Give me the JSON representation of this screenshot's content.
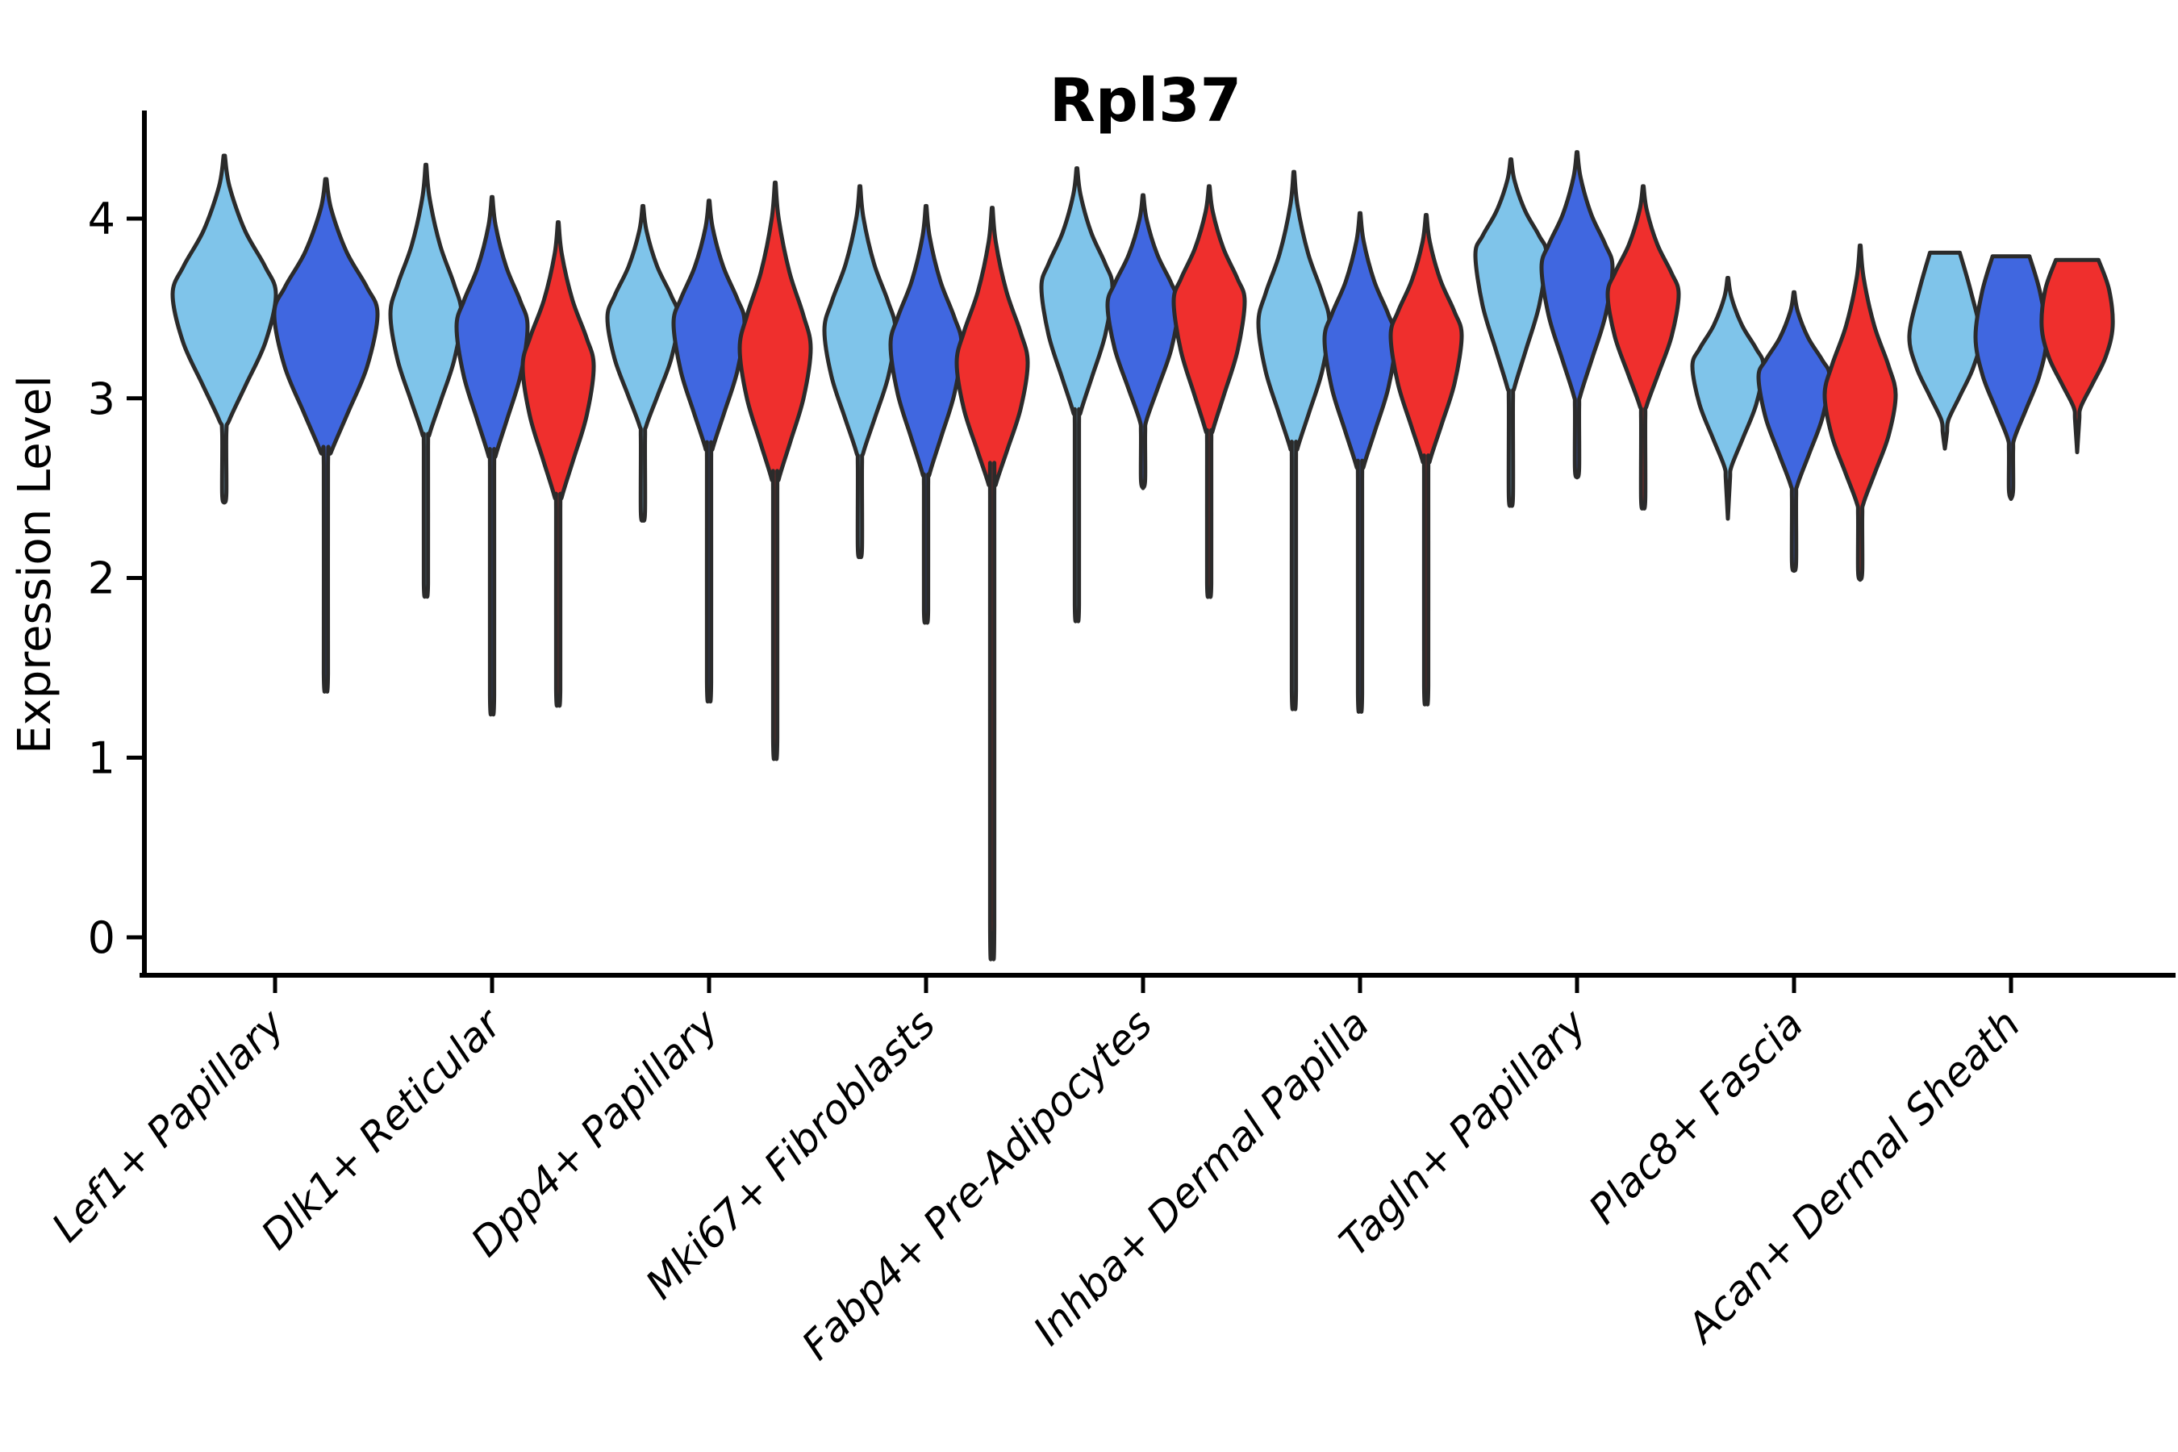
{
  "chart_data": {
    "type": "violin",
    "title": "Rpl37",
    "xlabel": "",
    "ylabel": "Expression Level",
    "yticks": [
      0,
      1,
      2,
      3,
      4
    ],
    "ylim": [
      -0.2,
      4.6
    ],
    "grid": false,
    "legend": "none",
    "series": [
      {
        "name": "series-skyblue",
        "color": "#7FC4EA"
      },
      {
        "name": "series-royalblue",
        "color": "#4067E0"
      },
      {
        "name": "series-red",
        "color": "#EF2F2D"
      }
    ],
    "outline_color": "#2B2B2B",
    "categories": [
      {
        "label": "Lef1+ Papillary",
        "violins": [
          {
            "series": 0,
            "top": 4.35,
            "mode": 3.58,
            "body_bottom": 2.88,
            "tail_end": 2.42
          },
          {
            "series": 1,
            "top": 4.22,
            "mode": 3.47,
            "body_bottom": 2.7,
            "tail_end": 1.42
          }
        ]
      },
      {
        "label": "Dlk1+ Reticular",
        "violins": [
          {
            "series": 0,
            "top": 4.3,
            "mode": 3.47,
            "body_bottom": 2.8,
            "tail_end": 1.92
          },
          {
            "series": 1,
            "top": 4.12,
            "mode": 3.4,
            "body_bottom": 2.68,
            "tail_end": 1.3
          },
          {
            "series": 2,
            "top": 3.98,
            "mode": 3.18,
            "body_bottom": 2.45,
            "tail_end": 1.33
          }
        ]
      },
      {
        "label": "Dpp4+ Papillary",
        "violins": [
          {
            "series": 0,
            "top": 4.07,
            "mode": 3.45,
            "body_bottom": 2.85,
            "tail_end": 2.32
          },
          {
            "series": 1,
            "top": 4.1,
            "mode": 3.42,
            "body_bottom": 2.72,
            "tail_end": 1.37
          },
          {
            "series": 2,
            "top": 4.2,
            "mode": 3.28,
            "body_bottom": 2.55,
            "tail_end": 1.06
          }
        ]
      },
      {
        "label": "Mki67+ Fibroblasts",
        "violins": [
          {
            "series": 0,
            "top": 4.18,
            "mode": 3.38,
            "body_bottom": 2.7,
            "tail_end": 2.12
          },
          {
            "series": 1,
            "top": 4.07,
            "mode": 3.3,
            "body_bottom": 2.58,
            "tail_end": 1.77
          },
          {
            "series": 2,
            "top": 4.06,
            "mode": 3.2,
            "body_bottom": 2.52,
            "tail_end": 0.02
          }
        ]
      },
      {
        "label": "Fabp4+ Pre-Adipocytes",
        "violins": [
          {
            "series": 0,
            "top": 4.28,
            "mode": 3.62,
            "body_bottom": 2.92,
            "tail_end": 1.8
          },
          {
            "series": 1,
            "top": 4.13,
            "mode": 3.52,
            "body_bottom": 2.88,
            "tail_end": 2.5
          },
          {
            "series": 2,
            "top": 4.18,
            "mode": 3.54,
            "body_bottom": 2.82,
            "tail_end": 1.92
          }
        ]
      },
      {
        "label": "Inhba+ Dermal Papilla",
        "violins": [
          {
            "series": 0,
            "top": 4.26,
            "mode": 3.42,
            "body_bottom": 2.72,
            "tail_end": 1.33
          },
          {
            "series": 1,
            "top": 4.03,
            "mode": 3.33,
            "body_bottom": 2.62,
            "tail_end": 1.31
          },
          {
            "series": 2,
            "top": 4.02,
            "mode": 3.35,
            "body_bottom": 2.65,
            "tail_end": 1.35
          }
        ]
      },
      {
        "label": "Tagln+ Papillary",
        "violins": [
          {
            "series": 0,
            "top": 4.33,
            "mode": 3.8,
            "body_bottom": 3.06,
            "tail_end": 2.41
          },
          {
            "series": 1,
            "top": 4.37,
            "mode": 3.73,
            "body_bottom": 3.02,
            "tail_end": 2.56
          },
          {
            "series": 2,
            "top": 4.18,
            "mode": 3.58,
            "body_bottom": 2.96,
            "tail_end": 2.39
          }
        ]
      },
      {
        "label": "Plac8+ Fascia",
        "violins": [
          {
            "series": 0,
            "top": 3.67,
            "mode": 3.18,
            "body_bottom": 2.62,
            "tail_end": 2.33
          },
          {
            "series": 1,
            "top": 3.59,
            "mode": 3.12,
            "body_bottom": 2.52,
            "tail_end": 2.04
          },
          {
            "series": 2,
            "top": 3.85,
            "mode": 3.02,
            "body_bottom": 2.42,
            "tail_end": 1.99
          }
        ]
      },
      {
        "label": "Acan+ Dermal Sheath",
        "violins": [
          {
            "series": 0,
            "top": 3.81,
            "mode": 3.35,
            "body_bottom": 2.88,
            "tail_end": 2.72,
            "flat_top": 0.42
          },
          {
            "series": 1,
            "top": 3.79,
            "mode": 3.34,
            "body_bottom": 2.78,
            "tail_end": 2.44,
            "flat_top": 0.52
          },
          {
            "series": 2,
            "top": 3.77,
            "mode": 3.4,
            "body_bottom": 2.95,
            "tail_end": 2.7,
            "flat_top": 0.6
          }
        ]
      }
    ]
  }
}
